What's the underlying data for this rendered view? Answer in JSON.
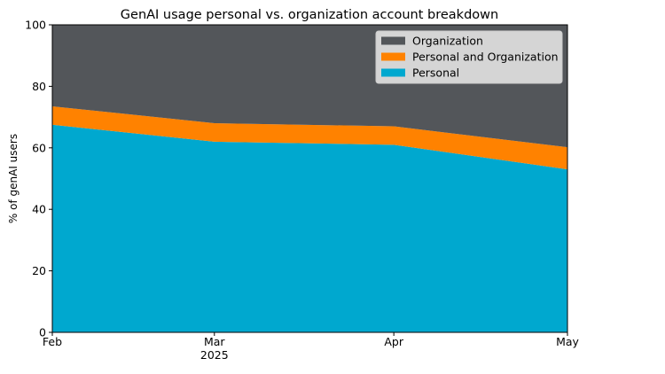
{
  "chart_data": {
    "type": "area",
    "stacked": true,
    "title": "GenAI usage personal vs. organization account breakdown",
    "xlabel": "",
    "ylabel": "% of genAI users",
    "x": [
      "2025-02-01",
      "2025-03-01",
      "2025-04-01",
      "2025-05-01"
    ],
    "x_ticks": [
      {
        "label": "Feb",
        "sublabel": ""
      },
      {
        "label": "Mar",
        "sublabel": "2025"
      },
      {
        "label": "Apr",
        "sublabel": ""
      },
      {
        "label": "May",
        "sublabel": ""
      }
    ],
    "ylim": [
      0,
      100
    ],
    "yticks": [
      0,
      20,
      40,
      60,
      80,
      100
    ],
    "grid": false,
    "legend_position": "top-right",
    "series": [
      {
        "name": "Personal",
        "color": "#00a8cf",
        "values": [
          67.5,
          62,
          61,
          53
        ]
      },
      {
        "name": "Personal and Organization",
        "color": "#ff8200",
        "values": [
          6,
          6,
          6,
          7.2
        ]
      },
      {
        "name": "Organization",
        "color": "#53565a",
        "values": [
          26.5,
          32,
          33,
          39.8
        ]
      }
    ],
    "legend_order": [
      "Organization",
      "Personal and Organization",
      "Personal"
    ]
  }
}
